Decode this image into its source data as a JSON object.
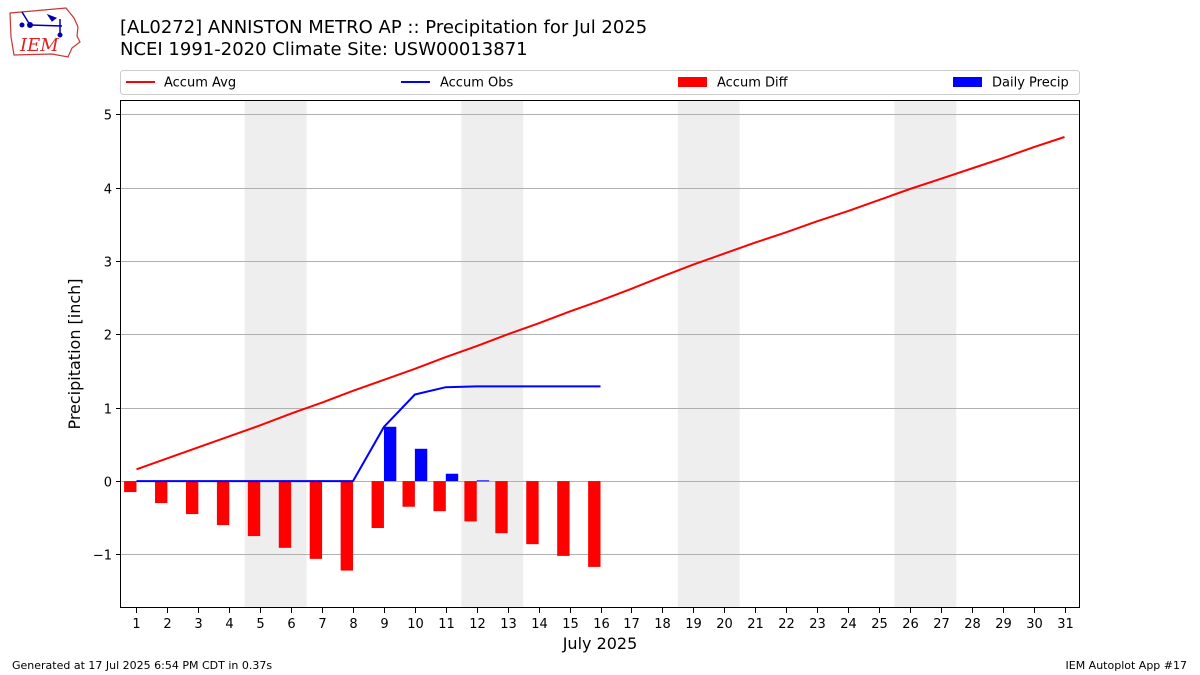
{
  "header": {
    "title_line1": "[AL0272] ANNISTON METRO AP :: Precipitation for Jul 2025",
    "title_line2": "NCEI 1991-2020 Climate Site: USW00013871"
  },
  "logo": {
    "text": "IEM"
  },
  "footer": {
    "generated": "Generated at 17 Jul 2025 6:54 PM CDT in 0.37s",
    "app": "IEM Autoplot App #17"
  },
  "colors": {
    "accum_avg": "#ff0000",
    "accum_obs": "#0000ff",
    "accum_diff": "#ff0000",
    "daily_precip": "#0000ff",
    "weekend_shade": "#eeeeee",
    "grid": "#b0b0b0"
  },
  "chart_data": {
    "type": "bar",
    "title": "[AL0272] ANNISTON METRO AP :: Precipitation for Jul 2025",
    "subtitle": "NCEI 1991-2020 Climate Site: USW00013871",
    "xlabel": "July 2025",
    "ylabel": "Precipitation [inch]",
    "xlim": [
      0.5,
      31.5
    ],
    "ylim": [
      -1.73,
      5.18
    ],
    "yticks": [
      -1,
      0,
      1,
      2,
      3,
      4,
      5
    ],
    "ytick_labels": [
      "−1",
      "0",
      "1",
      "2",
      "3",
      "4",
      "5"
    ],
    "days": [
      1,
      2,
      3,
      4,
      5,
      6,
      7,
      8,
      9,
      10,
      11,
      12,
      13,
      14,
      15,
      16,
      17,
      18,
      19,
      20,
      21,
      22,
      23,
      24,
      25,
      26,
      27,
      28,
      29,
      30,
      31
    ],
    "weekend_spans": [
      [
        4.5,
        6.5
      ],
      [
        11.5,
        13.5
      ],
      [
        18.5,
        20.5
      ],
      [
        25.5,
        27.5
      ]
    ],
    "grid": "horizontal",
    "legend_placement": "top",
    "series": [
      {
        "name": "Accum Avg",
        "kind": "line",
        "x": [
          1,
          2,
          3,
          4,
          5,
          6,
          7,
          8,
          9,
          10,
          11,
          12,
          13,
          14,
          15,
          16,
          17,
          18,
          19,
          20,
          21,
          22,
          23,
          24,
          25,
          26,
          27,
          28,
          29,
          30,
          31
        ],
        "values": [
          0.16,
          0.31,
          0.46,
          0.61,
          0.76,
          0.92,
          1.07,
          1.23,
          1.38,
          1.53,
          1.69,
          1.84,
          2.0,
          2.15,
          2.31,
          2.46,
          2.62,
          2.79,
          2.95,
          3.1,
          3.25,
          3.39,
          3.54,
          3.68,
          3.83,
          3.98,
          4.12,
          4.26,
          4.4,
          4.55,
          4.69
        ]
      },
      {
        "name": "Accum Obs",
        "kind": "line",
        "x": [
          1,
          2,
          3,
          4,
          5,
          6,
          7,
          8,
          9,
          10,
          11,
          12,
          13,
          14,
          15,
          16
        ],
        "values": [
          0.0,
          0.0,
          0.0,
          0.0,
          0.0,
          0.0,
          0.0,
          0.0,
          0.74,
          1.18,
          1.28,
          1.29,
          1.29,
          1.29,
          1.29,
          1.29
        ]
      },
      {
        "name": "Accum Diff",
        "kind": "bar",
        "x": [
          1,
          2,
          3,
          4,
          5,
          6,
          7,
          8,
          9,
          10,
          11,
          12,
          13,
          14,
          15,
          16
        ],
        "values": [
          -0.15,
          -0.3,
          -0.45,
          -0.6,
          -0.75,
          -0.91,
          -1.06,
          -1.22,
          -0.64,
          -0.35,
          -0.41,
          -0.55,
          -0.71,
          -0.86,
          -1.02,
          -1.17
        ]
      },
      {
        "name": "Daily Precip",
        "kind": "bar",
        "x": [
          1,
          2,
          3,
          4,
          5,
          6,
          7,
          8,
          9,
          10,
          11,
          12,
          13,
          14,
          15,
          16
        ],
        "values": [
          0,
          0,
          0,
          0,
          0,
          0,
          0,
          0,
          0.74,
          0.44,
          0.1,
          0.01,
          0,
          0,
          0,
          0
        ]
      }
    ]
  }
}
